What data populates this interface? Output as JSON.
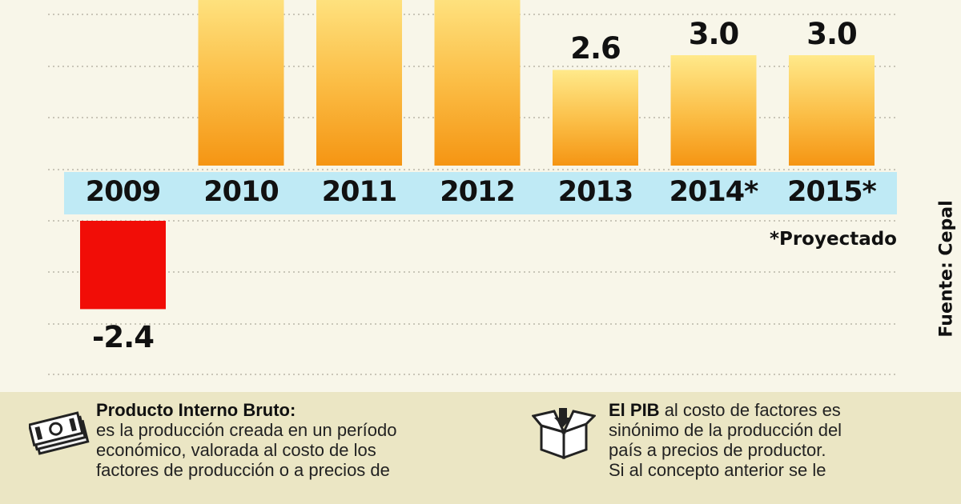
{
  "chart_data": {
    "type": "bar",
    "categories": [
      "2009",
      "2010",
      "2011",
      "2012",
      "2013",
      "2014*",
      "2015*"
    ],
    "values": [
      -2.4,
      5.0,
      5.0,
      5.0,
      2.6,
      3.0,
      3.0
    ],
    "value_labels": [
      "-2.4",
      "",
      "",
      "",
      "2.6",
      "3.0",
      "3.0"
    ],
    "title": "",
    "xlabel": "",
    "ylabel": "",
    "ylim": [
      -2.9,
      5.0
    ],
    "grid": true,
    "colors": {
      "positive": "#f59b1e",
      "positive_light": "#fff29a",
      "negative": "#f10d07",
      "band": "#bfeaf5"
    },
    "footnote": "*Proyectado",
    "source": "Fuente: Cepal"
  },
  "info": {
    "left": {
      "icon": "money-icon",
      "title": "Producto Interno Bruto:",
      "lines": [
        "es la producción creada en un período",
        "económico, valorada al costo de los",
        "factores de producción o a precios de"
      ]
    },
    "right": {
      "icon": "box-icon",
      "title": "El PIB",
      "title_rest": " al costo de factores es",
      "lines": [
        "sinónimo de la producción del",
        "país a precios de productor.",
        "Si al concepto anterior se le"
      ]
    }
  }
}
